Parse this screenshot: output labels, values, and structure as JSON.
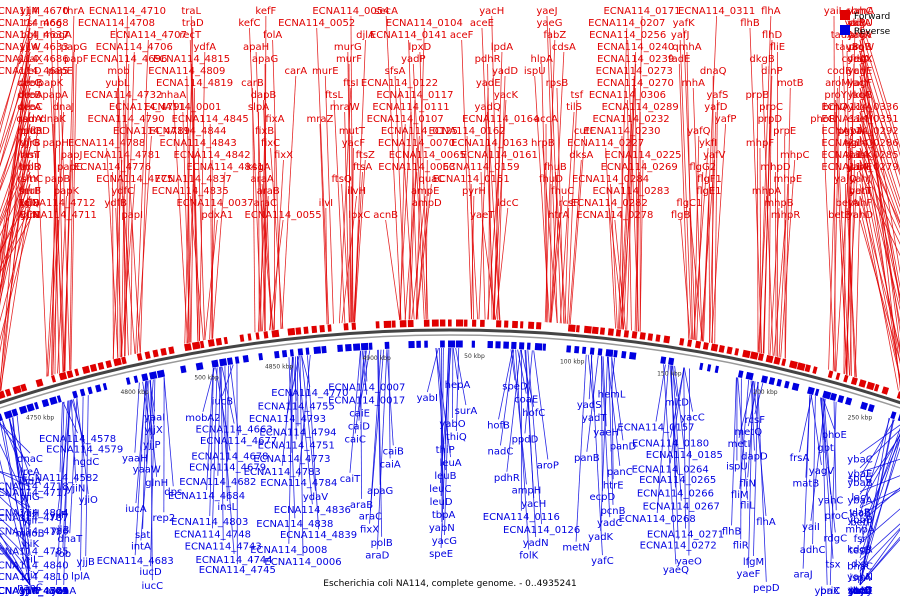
{
  "title": "Escherichia coli NA114, complete genome. - 0..4935241",
  "legend": {
    "forward": "Forward",
    "reverse": "Reverse",
    "forward_color": "#e00000",
    "reverse_color": "#0000e0"
  },
  "ticks": [
    "4850 kbp",
    "4900 kbp",
    "50 kbp",
    "100 kbp",
    "150 kbp",
    "200 kbp",
    "250 kbp",
    "300 kbp",
    "350 kbp",
    "400 kbp",
    "450 kbp",
    "500 kbp",
    "4800 kbp",
    "4750 kbp",
    "4700 kbp"
  ],
  "forward_labels": [
    "ECNA114_4670",
    "ECNA114_4668",
    "ECNA114_4637",
    "ECNA114_4633",
    "ECNA114_4686",
    "ECNA114_4685",
    "deoB",
    "deoA",
    "deoC",
    "osmY",
    "prfC",
    "yjjG",
    "rimI",
    "holD",
    "rsmC",
    "fhuF",
    "yjjQ",
    "yjjN",
    "yjjM",
    "tsr",
    "bglJ",
    "yjjW",
    "yaaX",
    "creD",
    "creC",
    "creB",
    "creA",
    "radA",
    "nadR",
    "thrB",
    "lasT",
    "trpR",
    "sltY",
    "serB",
    "talB",
    "thrC",
    "thrA",
    "mog",
    "mogA",
    "papG",
    "papF",
    "papE",
    "papK",
    "papA",
    "dnaJ",
    "dnaK",
    "papD",
    "papH",
    "papJ",
    "papC",
    "papB",
    "papK",
    "ECNA114_4712",
    "ECNA114_4711",
    "ECNA114_4710",
    "ECNA114_4708",
    "ECNA114_4707",
    "ECNA114_4706",
    "ECNA114_4696",
    "mob",
    "yubL",
    "ECNA114_4732",
    "ECNA114_4791",
    "ECNA114_4790",
    "ECNA114_4789",
    "ECNA114_4788",
    "ECNA114_4781",
    "ECNA114_4776",
    "ECNA114_4775",
    "ydfC",
    "ydfB",
    "papI",
    "traL",
    "traD",
    "recT",
    "ydfA",
    "ECNA114_4815",
    "ECNA114_4809",
    "ECNA114_4819",
    "nhaA",
    "ECNA114_0001",
    "ECNA114_4845",
    "ECNA114_4844",
    "ECNA114_4843",
    "ECNA114_4842",
    "ECNA114_4841",
    "ECNA114_4837",
    "ECNA114_4835",
    "ECNA114_0037",
    "pdxA1",
    "kefF",
    "kefC",
    "folA",
    "apaH",
    "apaG",
    "carA",
    "carB",
    "dapB",
    "slpA",
    "fixA",
    "fixB",
    "fixC",
    "fixX",
    "ksgA",
    "araA",
    "araB",
    "araC",
    "ECNA114_0055",
    "ECNA114_0054",
    "ECNA114_0052",
    "djlA",
    "murG",
    "murF",
    "murE",
    "ftsI",
    "ftsL",
    "mraW",
    "mraZ",
    "mutT",
    "yacF",
    "ftsZ",
    "ftsA",
    "ftsQ",
    "ilvH",
    "ilvI",
    "lpxC",
    "secA",
    "ECNA114_0104",
    "ECNA114_0141",
    "lpxD",
    "yadP",
    "sfsA",
    "ECNA114_0122",
    "ECNA114_0117",
    "ECNA114_0111",
    "ECNA114_0107",
    "ECNA114_0125",
    "ECNA114_0070",
    "ECNA114_0065",
    "ECNA114_0063",
    "quaC",
    "ampE",
    "ampD",
    "acnB",
    "yacH",
    "aceE",
    "aceF",
    "lpdA",
    "pdhR",
    "yadD",
    "yadE",
    "yacK",
    "yadQ",
    "ECNA114_0164",
    "ECNA114_0162",
    "ECNA114_0163",
    "ECNA114_0161",
    "ECNA114_0159",
    "ECNA114_0151",
    "pyrH",
    "ldcC",
    "yaeT",
    "yaeJ",
    "yaeG",
    "fabZ",
    "cdsA",
    "hlpA",
    "ispU",
    "rpsB",
    "tsf",
    "tilS",
    "accA",
    "cutF",
    "hrpB",
    "dksA",
    "fhuB",
    "fhuD",
    "fhuC",
    "rcsF",
    "htrA",
    "ECNA114_0171",
    "ECNA114_0207",
    "ECNA114_0256",
    "ECNA114_0240",
    "ECNA114_0239",
    "ECNA114_0273",
    "ECNA114_0270",
    "ECNA114_0306",
    "ECNA114_0289",
    "ECNA114_0232",
    "ECNA114_0230",
    "ECNA114_0227",
    "ECNA114_0225",
    "ECNA114_0269",
    "ECNA114_0284",
    "ECNA114_0283",
    "ECNA114_0282",
    "ECNA114_0278",
    "ECNA114_0311",
    "yafK",
    "yafJ",
    "qmhA",
    "fadE",
    "dnaQ",
    "rnhA",
    "yafS",
    "yafD",
    "yafP",
    "yafQ",
    "ykfI",
    "yafV",
    "flgG2",
    "flgF1",
    "flgE1",
    "flgC1",
    "flgB",
    "flhA",
    "flhB",
    "flhD",
    "fliE",
    "dkgB",
    "dinP",
    "motB",
    "prpB",
    "prpC",
    "prpD",
    "prpE",
    "mhpF",
    "mhpC",
    "mhpD",
    "mhpE",
    "mhpA",
    "mhpB",
    "mhpR",
    "yaiL",
    "yaiP",
    "tauA",
    "tauB",
    "codA",
    "codB",
    "aroM",
    "proY",
    "brnQ",
    "phoR",
    "pgpA",
    "tig",
    "thiL",
    "yajA",
    "yajQ",
    "betT",
    "betA",
    "betB",
    "sbmA",
    "ddlA",
    "proA",
    "proB",
    "frsA",
    "crl",
    "lacY",
    "lacA",
    "ECNA114_0336",
    "ECNA114_0351",
    "yaiL",
    "yahO",
    "yahK",
    "yahE",
    "yahJ",
    "yahI",
    "yahF",
    "yahD",
    "yahC",
    "yagU",
    "yagV",
    "yagW",
    "yagX",
    "yagE",
    "yagF",
    "ykgB",
    "ykgA",
    "eaeH",
    "ECNA114_0292",
    "ECNA114_0286",
    "ECNA114_0285",
    "ECNA114_0279"
  ],
  "reverse_labels": [
    "ECNA114_4718",
    "ECNA114_4717",
    "ECNA114_4804",
    "ECNA114_4787",
    "ECNA114_4786",
    "ECNA114_4785",
    "ECNA114_4840",
    "ECNA114_4810",
    "ECNA114_4811",
    "ECNA114_4705",
    "ECNA114_4704",
    "ECNA114_4703",
    "yjiW",
    "yjiR",
    "dnaC",
    "ireA",
    "iadA",
    "yjiG",
    "yjiH",
    "yjiI",
    "mdoB",
    "yjiK",
    "yjiL",
    "yjiY",
    "nanC",
    "gntP",
    "ECNA114_4569",
    "ECNA114_4573",
    "ECNA114_4578",
    "ECNA114_4579",
    "hgdC",
    "ECNA114_4582",
    "yjiN",
    "yjiO",
    "yjiP",
    "yjiB",
    "dnaT",
    "rob",
    "yjjB",
    "lplA",
    "yaaA",
    "arcA",
    "yaaI",
    "yjjX",
    "yjjP",
    "yaaH",
    "yaaW",
    "glnH",
    "dps",
    "iucA",
    "rep2",
    "sat",
    "intA",
    "ECNA114_4683",
    "iucD",
    "iucC",
    "iucB",
    "mobA2",
    "ECNA114_4663",
    "ECNA114_4677",
    "ECNA114_4678",
    "ECNA114_4679",
    "ECNA114_4682",
    "ECNA114_4684",
    "insL",
    "ECNA114_4803",
    "ECNA114_4748",
    "ECNA114_4743",
    "ECNA114_4744",
    "ECNA114_4745",
    "ECNA114_4770",
    "ECNA114_4755",
    "ECNA114_4793",
    "ECNA114_4794",
    "ECNA114_4751",
    "ECNA114_4773",
    "ECNA114_4783",
    "ECNA114_4784",
    "ydaV",
    "ECNA114_4836",
    "ECNA114_4838",
    "ECNA114_4839",
    "ECNA114_0008",
    "ECNA114_0006",
    "ECNA114_0007",
    "ECNA114_0017",
    "caiE",
    "caiD",
    "caiC",
    "caiB",
    "caiA",
    "caiT",
    "apaG",
    "araB",
    "araC",
    "fixX",
    "polB",
    "araD",
    "hepA",
    "yabI",
    "surA",
    "yabO",
    "thiQ",
    "thiP",
    "leuA",
    "leuB",
    "leuC",
    "leuD",
    "tbpA",
    "yabN",
    "yacG",
    "speE",
    "speD",
    "coaE",
    "hofC",
    "hofB",
    "ppdD",
    "nadC",
    "aroP",
    "pdhR",
    "ampH",
    "yacH",
    "ECNA114_0116",
    "ECNA114_0126",
    "yadN",
    "folK",
    "hemL",
    "yadS",
    "yadT",
    "yaeH",
    "panD",
    "panB",
    "panC",
    "htrE",
    "ecpD",
    "pcnB",
    "yadC",
    "yadK",
    "metN",
    "yafC",
    "mltD",
    "yacC",
    "ECNA114_0157",
    "ECNA114_0180",
    "ECNA114_0185",
    "ECNA114_0264",
    "ECNA114_0265",
    "ECNA114_0266",
    "ECNA114_0267",
    "ECNA114_0268",
    "ECNA114_0271",
    "ECNA114_0272",
    "yaeO",
    "yaeQ",
    "rcsF",
    "metQ",
    "metI",
    "dapD",
    "ispU",
    "fliN",
    "fliM",
    "fliL",
    "flhA",
    "flhB",
    "fliR",
    "lfgM",
    "yaeF",
    "pepD",
    "phoE",
    "gpt",
    "frsA",
    "yagV",
    "matB",
    "yahC",
    "proC",
    "yaiI",
    "rdgC",
    "adhC",
    "tsx",
    "araJ",
    "ybaX",
    "priC",
    "ybaC",
    "ybaE",
    "ybaB",
    "ybaA",
    "ylaB",
    "ybbB",
    "fsr",
    "tesB",
    "dxs",
    "ispA",
    "xseB",
    "yajC",
    "yajO",
    "sbcD",
    "sbcC",
    "lacI",
    "lacZ",
    "betI",
    "mhpA",
    "kdgR",
    "bhaC",
    "yahN",
    "lacY",
    "ybaZ",
    "ybbJ"
  ]
}
